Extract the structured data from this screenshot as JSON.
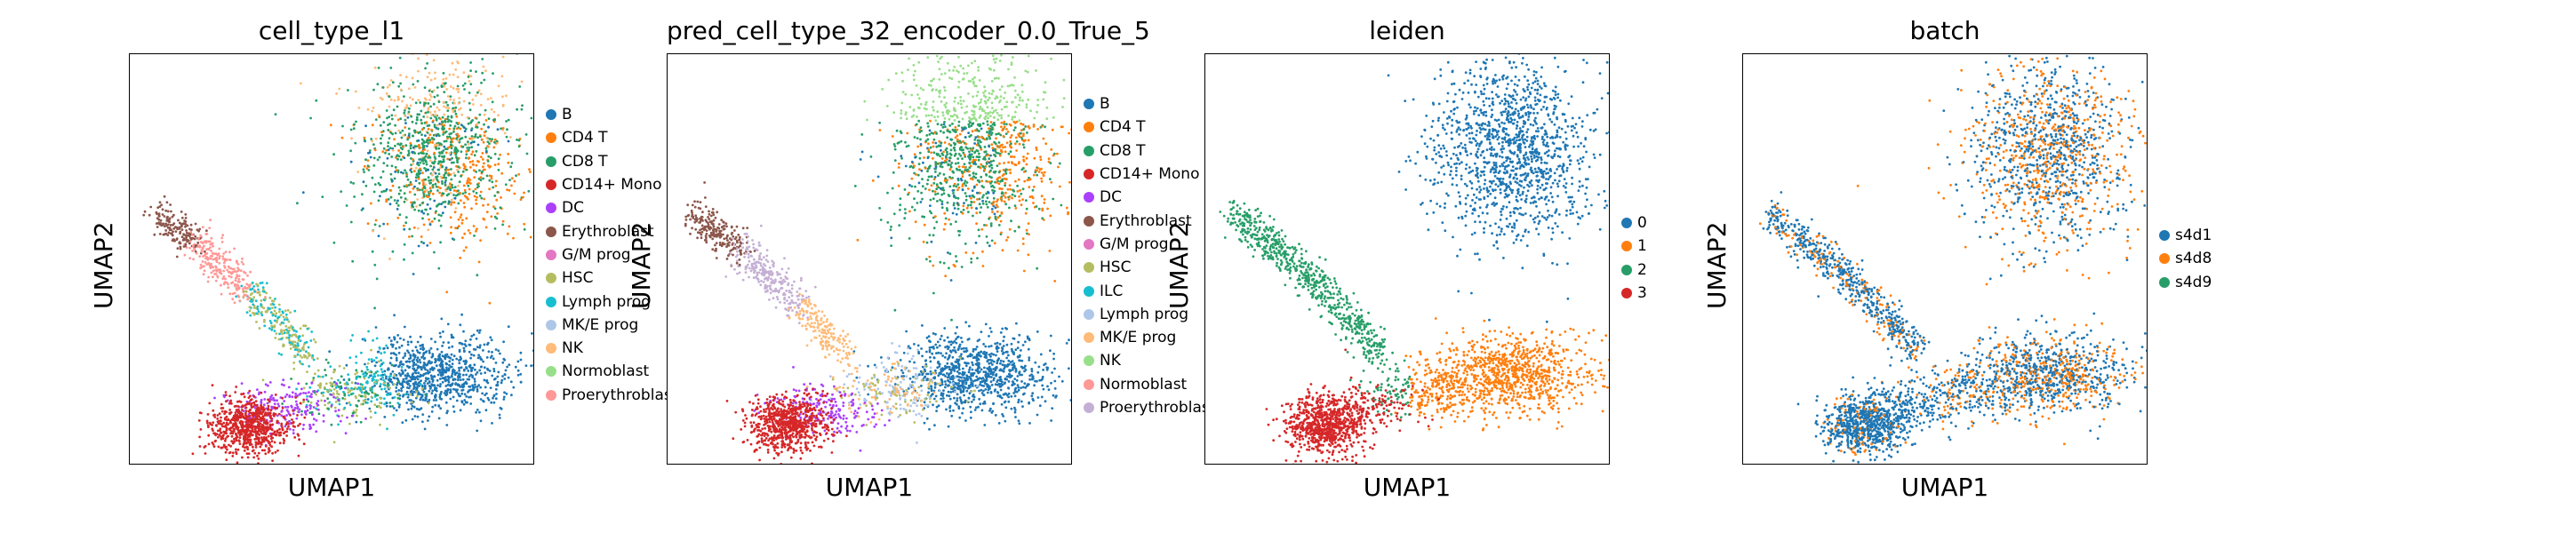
{
  "chart_data": [
    {
      "type": "scatter",
      "title": "cell_type_l1",
      "xlabel": "UMAP1",
      "ylabel": "UMAP2",
      "legend_placement": "right-outside",
      "legend": [
        {
          "label": "B",
          "color": "#1f77b4"
        },
        {
          "label": "CD4 T",
          "color": "#ff7f0e"
        },
        {
          "label": "CD8 T",
          "color": "#279e68"
        },
        {
          "label": "CD14+ Mono",
          "color": "#d62728"
        },
        {
          "label": "DC",
          "color": "#aa40fc"
        },
        {
          "label": "Erythroblast",
          "color": "#8c564b"
        },
        {
          "label": "G/M prog",
          "color": "#e377c2"
        },
        {
          "label": "HSC",
          "color": "#b5bd61"
        },
        {
          "label": "Lymph prog",
          "color": "#17becf"
        },
        {
          "label": "MK/E prog",
          "color": "#aec7e8"
        },
        {
          "label": "NK",
          "color": "#ffbb78"
        },
        {
          "label": "Normoblast",
          "color": "#98df8a"
        },
        {
          "label": "Proerythroblast",
          "color": "#ff9896"
        }
      ]
    },
    {
      "type": "scatter",
      "title": "pred_cell_type_32_encoder_0.0_True_5",
      "xlabel": "UMAP1",
      "ylabel": "UMAP2",
      "legend_placement": "right-outside",
      "legend": [
        {
          "label": "B",
          "color": "#1f77b4"
        },
        {
          "label": "CD4 T",
          "color": "#ff7f0e"
        },
        {
          "label": "CD8 T",
          "color": "#279e68"
        },
        {
          "label": "CD14+ Mono",
          "color": "#d62728"
        },
        {
          "label": "DC",
          "color": "#aa40fc"
        },
        {
          "label": "Erythroblast",
          "color": "#8c564b"
        },
        {
          "label": "G/M prog",
          "color": "#e377c2"
        },
        {
          "label": "HSC",
          "color": "#b5bd61"
        },
        {
          "label": "ILC",
          "color": "#17becf"
        },
        {
          "label": "Lymph prog",
          "color": "#aec7e8"
        },
        {
          "label": "MK/E prog",
          "color": "#ffbb78"
        },
        {
          "label": "NK",
          "color": "#98df8a"
        },
        {
          "label": "Normoblast",
          "color": "#ff9896"
        },
        {
          "label": "Proerythroblast",
          "color": "#c5b0d5"
        }
      ]
    },
    {
      "type": "scatter",
      "title": "leiden",
      "xlabel": "UMAP1",
      "ylabel": "UMAP2",
      "legend_placement": "right-outside",
      "legend": [
        {
          "label": "0",
          "color": "#1f77b4"
        },
        {
          "label": "1",
          "color": "#ff7f0e"
        },
        {
          "label": "2",
          "color": "#279e68"
        },
        {
          "label": "3",
          "color": "#d62728"
        }
      ]
    },
    {
      "type": "scatter",
      "title": "batch",
      "xlabel": "UMAP1",
      "ylabel": "UMAP2",
      "legend_placement": "right-outside",
      "legend": [
        {
          "label": "s4d1",
          "color": "#1f77b4"
        },
        {
          "label": "s4d8",
          "color": "#ff7f0e"
        },
        {
          "label": "s4d9",
          "color": "#279e68"
        }
      ]
    }
  ]
}
